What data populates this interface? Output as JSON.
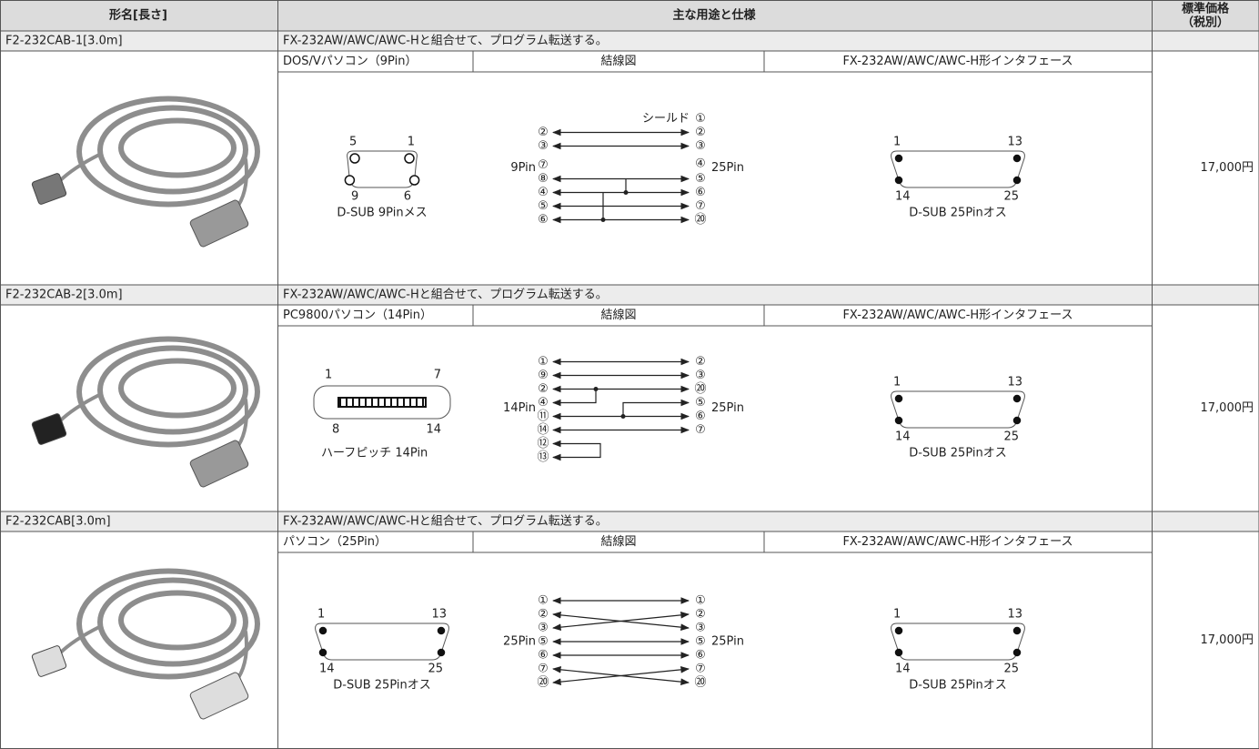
{
  "header": {
    "model": "形名[長さ]",
    "usage": "主な用途と仕様",
    "price_lines": [
      "標準価格",
      "（税別）"
    ]
  },
  "products": [
    {
      "name": "F2-232CAB-1[3.0m]",
      "usage": "FX-232AW/AWC/AWC-Hと組合せて、プログラム転送する。",
      "columns": [
        "DOS/Vパソコン（9Pin）",
        "結線図",
        "FX-232AW/AWC/AWC-H形インタフェース"
      ],
      "price": "17,000円",
      "left_connector": {
        "labels": [
          "5",
          "1",
          "9",
          "6"
        ],
        "caption": "D-SUB 9Pinメス"
      },
      "wiring": {
        "left_label": "9Pin",
        "right_label": "25Pin",
        "note": "シールド",
        "left_pins": [
          "②",
          "③",
          "⑦",
          "⑧",
          "④",
          "⑤",
          "⑥"
        ],
        "right_pins": [
          "①",
          "②",
          "③",
          "④",
          "⑤",
          "⑥",
          "⑦",
          "⑳"
        ]
      },
      "right_connector": {
        "labels": [
          "1",
          "13",
          "14",
          "25"
        ],
        "caption": "D-SUB 25Pinオス"
      }
    },
    {
      "name": "F2-232CAB-2[3.0m]",
      "usage": "FX-232AW/AWC/AWC-Hと組合せて、プログラム転送する。",
      "columns": [
        "PC9800パソコン（14Pin）",
        "結線図",
        "FX-232AW/AWC/AWC-H形インタフェース"
      ],
      "price": "17,000円",
      "left_connector": {
        "labels": [
          "1",
          "7",
          "8",
          "14"
        ],
        "caption": "ハーフピッチ 14Pin"
      },
      "wiring": {
        "left_label": "14Pin",
        "right_label": "25Pin",
        "left_pins": [
          "①",
          "⑨",
          "②",
          "④",
          "⑪",
          "⑭",
          "⑫",
          "⑬"
        ],
        "right_pins": [
          "②",
          "③",
          "⑳",
          "⑤",
          "⑥",
          "⑦"
        ]
      },
      "right_connector": {
        "labels": [
          "1",
          "13",
          "14",
          "25"
        ],
        "caption": "D-SUB 25Pinオス"
      }
    },
    {
      "name": "F2-232CAB[3.0m]",
      "usage": "FX-232AW/AWC/AWC-Hと組合せて、プログラム転送する。",
      "columns": [
        "パソコン（25Pin）",
        "結線図",
        "FX-232AW/AWC/AWC-H形インタフェース"
      ],
      "price": "17,000円",
      "left_connector": {
        "labels": [
          "1",
          "13",
          "14",
          "25"
        ],
        "caption": "D-SUB 25Pinオス"
      },
      "wiring": {
        "left_label": "25Pin",
        "right_label": "25Pin",
        "left_pins": [
          "①",
          "②",
          "③",
          "⑤",
          "⑥",
          "⑦",
          "⑳"
        ],
        "right_pins": [
          "①",
          "②",
          "③",
          "⑤",
          "⑥",
          "⑦",
          "⑳"
        ]
      },
      "right_connector": {
        "labels": [
          "1",
          "13",
          "14",
          "25"
        ],
        "caption": "D-SUB 25Pinオス"
      }
    }
  ]
}
